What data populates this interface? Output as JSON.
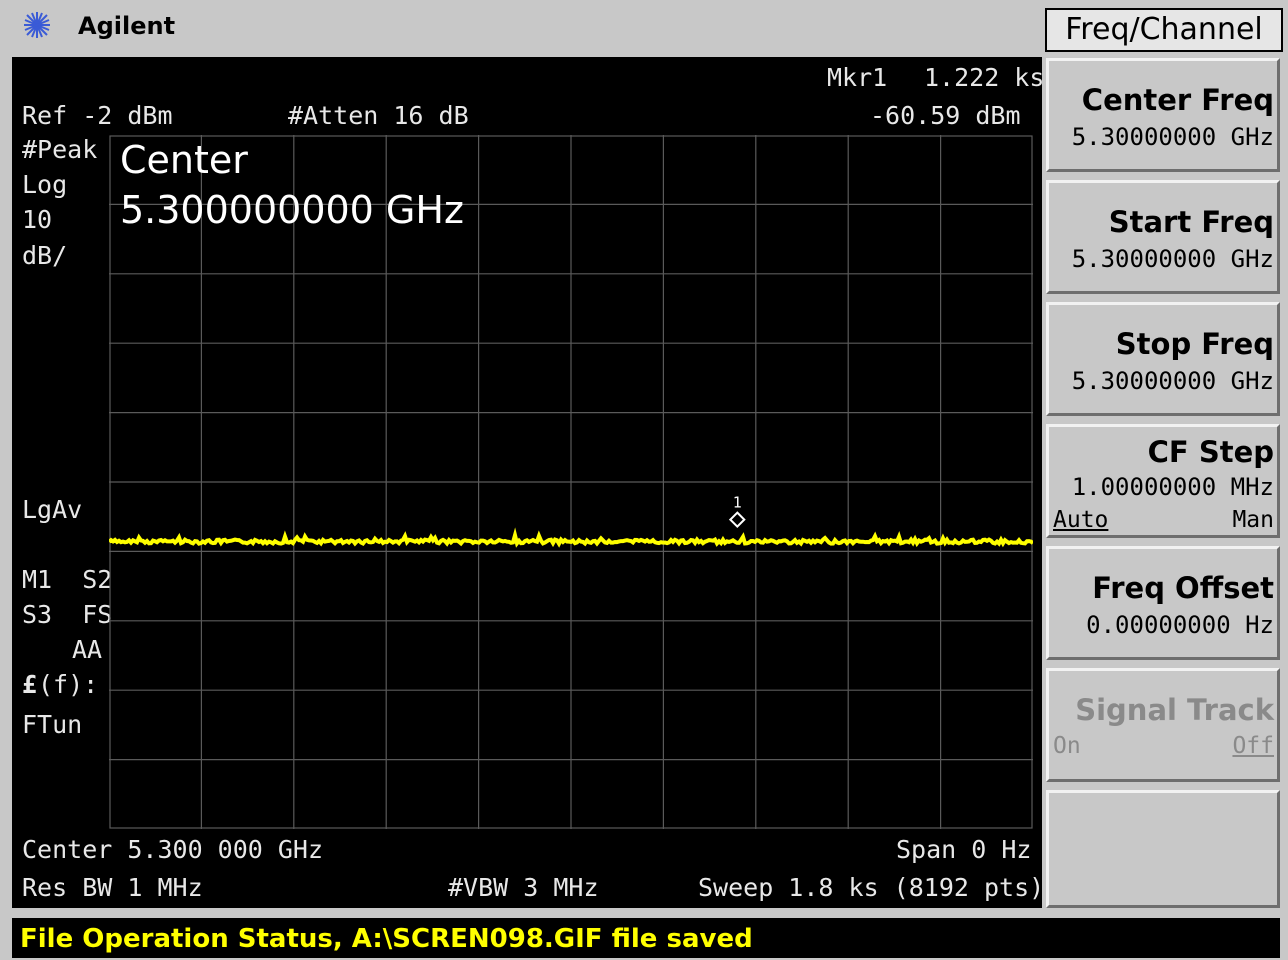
{
  "title_bar": {
    "brand": "Agilent"
  },
  "header": {
    "ref": "Ref -2 dBm",
    "atten": "#Atten 16 dB",
    "marker_label": "Mkr1",
    "marker_time": "1.222 ks",
    "marker_level": "-60.59 dBm"
  },
  "left_annotations": {
    "peak": "#Peak",
    "log": "Log",
    "scale": "10",
    "units": "dB/",
    "avg": "LgAv",
    "m1": "M1  S2",
    "s3": "S3  FS",
    "aa": "AA",
    "ff_symbol": "£",
    "ff": "(f):",
    "ftun": "FTun"
  },
  "active_function": {
    "label": "Center",
    "value": "5.300000000 GHz"
  },
  "footer": {
    "center": "Center 5.300 000 GHz",
    "span": "Span 0 Hz",
    "rbw": "Res BW 1 MHz",
    "vbw": "#VBW 3 MHz",
    "sweep": "Sweep 1.8 ks (8192 pts)"
  },
  "trace": {
    "color": "#ffff00",
    "level_dbm": -60.59,
    "ref_level_dbm": -2,
    "db_per_div": 10,
    "marker_number": "1",
    "marker_position_fraction": 0.68
  },
  "menu": {
    "title": "Freq/Channel",
    "keys": [
      {
        "label": "Center Freq",
        "value": "5.30000000 GHz"
      },
      {
        "label": "Start Freq",
        "value": "5.30000000 GHz"
      },
      {
        "label": "Stop Freq",
        "value": "5.30000000 GHz"
      },
      {
        "label": "CF Step",
        "value": "1.00000000 MHz",
        "opt_left": "Auto",
        "opt_right": "Man"
      },
      {
        "label": "Freq Offset",
        "value": "0.00000000  Hz"
      },
      {
        "label": "Signal Track",
        "opt_left": "On",
        "opt_right": "Off"
      }
    ]
  },
  "status": {
    "text": "File Operation Status, A:\\SCREN098.GIF file saved"
  }
}
